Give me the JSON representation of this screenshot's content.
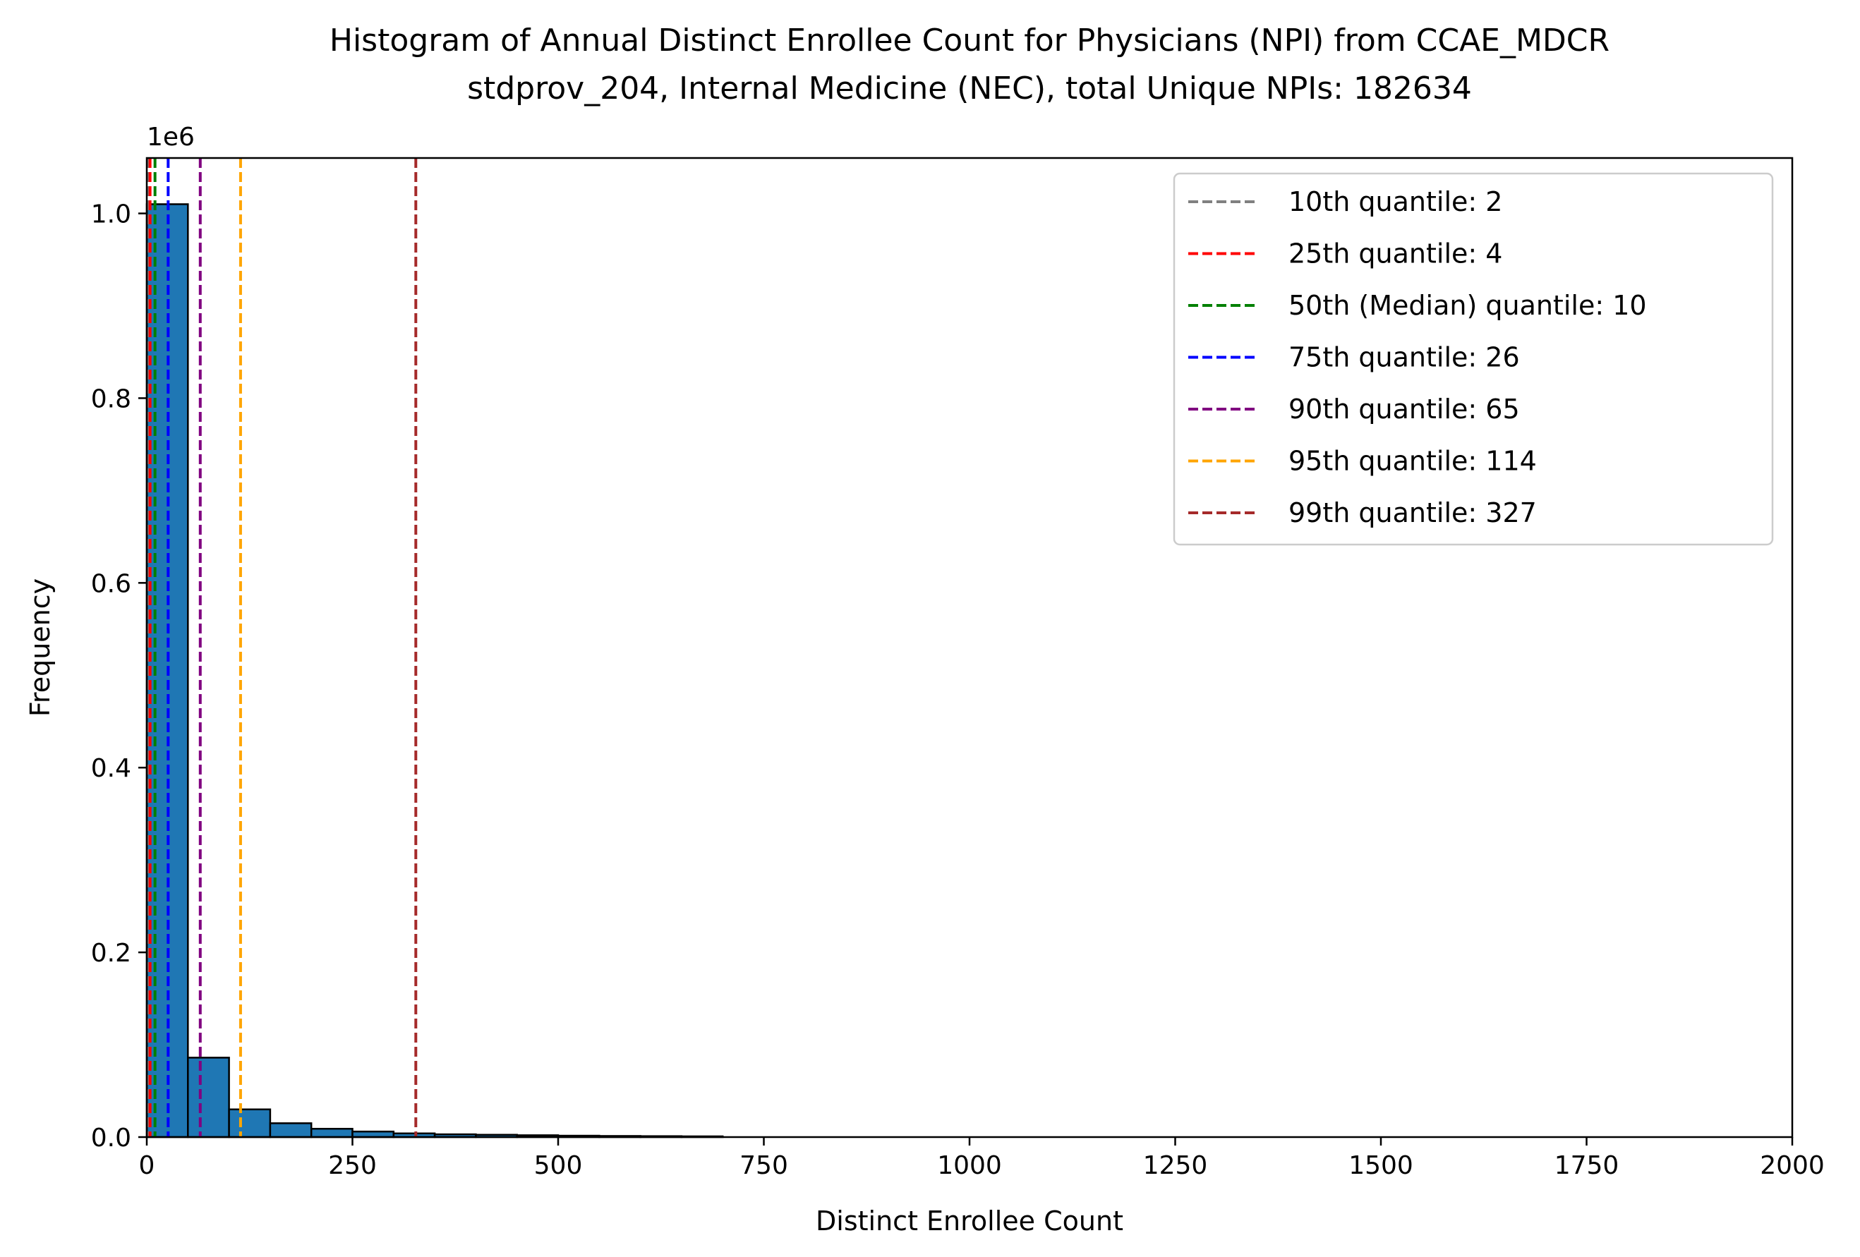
{
  "chart_data": {
    "type": "bar",
    "title": "Histogram of Annual Distinct Enrollee Count for Physicians (NPI) from CCAE_MDCR",
    "subtitle": "stdprov_204, Internal Medicine (NEC), total Unique NPIs: 182634",
    "xlabel": "Distinct Enrollee Count",
    "ylabel": "Frequency",
    "y_offset_text": "1e6",
    "xlim": [
      0,
      2000
    ],
    "ylim": [
      0,
      1.06
    ],
    "x_ticks": [
      "0",
      "250",
      "500",
      "750",
      "1000",
      "1250",
      "1500",
      "1750",
      "2000"
    ],
    "x_tick_values": [
      0,
      250,
      500,
      750,
      1000,
      1250,
      1500,
      1750,
      2000
    ],
    "y_ticks": [
      "0.0",
      "0.2",
      "0.4",
      "0.6",
      "0.8",
      "1.0"
    ],
    "y_tick_values": [
      0.0,
      0.2,
      0.4,
      0.6,
      0.8,
      1.0
    ],
    "bin_width": 50,
    "bins": [
      {
        "x0": 0,
        "x1": 50,
        "value": 1.01
      },
      {
        "x0": 50,
        "x1": 100,
        "value": 0.086
      },
      {
        "x0": 100,
        "x1": 150,
        "value": 0.03
      },
      {
        "x0": 150,
        "x1": 200,
        "value": 0.015
      },
      {
        "x0": 200,
        "x1": 250,
        "value": 0.009
      },
      {
        "x0": 250,
        "x1": 300,
        "value": 0.006
      },
      {
        "x0": 300,
        "x1": 350,
        "value": 0.004
      },
      {
        "x0": 350,
        "x1": 400,
        "value": 0.003
      },
      {
        "x0": 400,
        "x1": 450,
        "value": 0.0025
      },
      {
        "x0": 450,
        "x1": 500,
        "value": 0.002
      },
      {
        "x0": 500,
        "x1": 550,
        "value": 0.0015
      },
      {
        "x0": 550,
        "x1": 600,
        "value": 0.0012
      },
      {
        "x0": 600,
        "x1": 650,
        "value": 0.001
      },
      {
        "x0": 650,
        "x1": 700,
        "value": 0.0008
      }
    ],
    "quantiles": [
      {
        "label": "10th quantile: 2",
        "value": 2,
        "color": "#808080"
      },
      {
        "label": "25th quantile: 4",
        "value": 4,
        "color": "#ff0000"
      },
      {
        "label": "50th (Median) quantile: 10",
        "value": 10,
        "color": "#008000"
      },
      {
        "label": "75th quantile: 26",
        "value": 26,
        "color": "#0000ff"
      },
      {
        "label": "90th quantile: 65",
        "value": 65,
        "color": "#800080"
      },
      {
        "label": "95th quantile: 114",
        "value": 114,
        "color": "#ffa500"
      },
      {
        "label": "99th quantile: 327",
        "value": 327,
        "color": "#a52a2a"
      }
    ],
    "bar_color": "#1f77b4",
    "bar_edge_color": "#000000",
    "legend_position": "top-right",
    "grid": false
  }
}
